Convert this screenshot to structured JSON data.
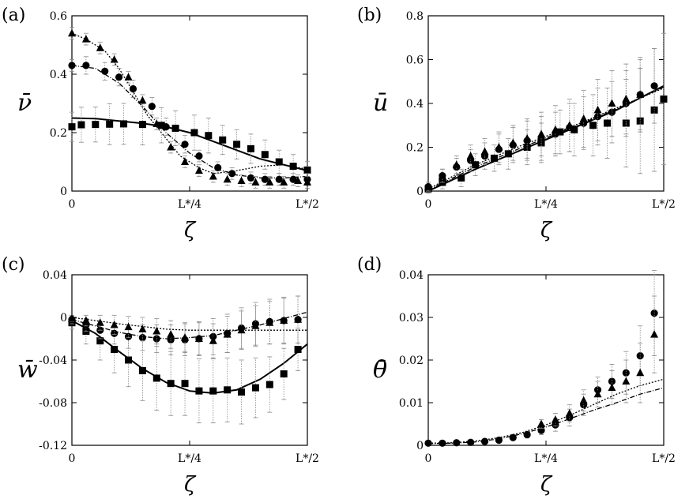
{
  "figure": {
    "x_ticks": [
      "0",
      "L*/4",
      "L*/2"
    ],
    "xlabel": "ζ"
  },
  "chart_data": [
    {
      "panel": "(a)",
      "type": "line",
      "ylabel": "ν̄",
      "xlabel": "ζ",
      "xlim": [
        0,
        0.5
      ],
      "ylim": [
        0,
        0.6
      ],
      "y_ticks": [
        0,
        0.2,
        0.4,
        0.6
      ],
      "y_tick_labels": [
        "0",
        "0.2",
        "0.4",
        "0.6"
      ],
      "curves": [
        {
          "name": "solid",
          "dash": "",
          "width": 2.0,
          "x": [
            0,
            0.05,
            0.1,
            0.15,
            0.2,
            0.25,
            0.3,
            0.35,
            0.4,
            0.45,
            0.5
          ],
          "y": [
            0.25,
            0.248,
            0.24,
            0.232,
            0.22,
            0.2,
            0.17,
            0.14,
            0.11,
            0.09,
            0.07
          ]
        },
        {
          "name": "dotted",
          "dash": "2,2",
          "width": 1.3,
          "x": [
            0,
            0.03,
            0.07,
            0.1,
            0.13,
            0.16,
            0.2,
            0.23,
            0.27,
            0.3,
            0.35,
            0.4,
            0.45,
            0.5
          ],
          "y": [
            0.54,
            0.52,
            0.48,
            0.42,
            0.34,
            0.26,
            0.18,
            0.12,
            0.08,
            0.06,
            0.07,
            0.085,
            0.09,
            0.075
          ]
        },
        {
          "name": "dashdot",
          "dash": "6,2,1,2",
          "width": 1.3,
          "x": [
            0,
            0.05,
            0.1,
            0.15,
            0.2,
            0.25,
            0.3,
            0.35,
            0.4,
            0.45,
            0.5
          ],
          "y": [
            0.43,
            0.42,
            0.37,
            0.29,
            0.2,
            0.13,
            0.08,
            0.055,
            0.045,
            0.045,
            0.05
          ]
        }
      ],
      "series": [
        {
          "name": "squares",
          "marker": "square",
          "x": [
            0,
            0.02,
            0.05,
            0.08,
            0.11,
            0.15,
            0.19,
            0.22,
            0.26,
            0.29,
            0.32,
            0.35,
            0.38,
            0.41,
            0.44,
            0.47,
            0.5
          ],
          "y": [
            0.22,
            0.227,
            0.228,
            0.229,
            0.23,
            0.228,
            0.225,
            0.215,
            0.2,
            0.19,
            0.175,
            0.16,
            0.145,
            0.125,
            0.1,
            0.085,
            0.072
          ],
          "err": [
            0.05,
            0.06,
            0.06,
            0.07,
            0.07,
            0.07,
            0.06,
            0.06,
            0.06,
            0.06,
            0.05,
            0.05,
            0.05,
            0.05,
            0.04,
            0.04,
            0.03
          ]
        },
        {
          "name": "circles",
          "marker": "circle",
          "x": [
            0,
            0.03,
            0.07,
            0.1,
            0.13,
            0.17,
            0.2,
            0.24,
            0.27,
            0.31,
            0.34,
            0.38,
            0.41,
            0.44,
            0.47,
            0.5
          ],
          "y": [
            0.43,
            0.43,
            0.41,
            0.39,
            0.35,
            0.29,
            0.22,
            0.16,
            0.12,
            0.08,
            0.06,
            0.045,
            0.04,
            0.04,
            0.04,
            0.04
          ],
          "err": [
            0.02,
            0.03,
            0.03,
            0.03,
            0.03,
            0.03,
            0.03,
            0.03,
            0.02,
            0.02,
            0.02,
            0.02,
            0.02,
            0.02,
            0.02,
            0.02
          ]
        },
        {
          "name": "triangles",
          "marker": "triangle",
          "x": [
            0,
            0.03,
            0.06,
            0.09,
            0.12,
            0.15,
            0.18,
            0.21,
            0.24,
            0.27,
            0.3,
            0.33,
            0.36,
            0.39,
            0.42,
            0.45,
            0.48,
            0.5
          ],
          "y": [
            0.54,
            0.52,
            0.49,
            0.45,
            0.39,
            0.31,
            0.23,
            0.15,
            0.1,
            0.07,
            0.05,
            0.04,
            0.035,
            0.03,
            0.03,
            0.03,
            0.035,
            0.03
          ],
          "err": [
            0.02,
            0.02,
            0.02,
            0.02,
            0.02,
            0.02,
            0.02,
            0.02,
            0.02,
            0.02,
            0.02,
            0.02,
            0.02,
            0.02,
            0.02,
            0.02,
            0.02,
            0.02
          ]
        }
      ]
    },
    {
      "panel": "(b)",
      "type": "line",
      "ylabel": "ū",
      "xlabel": "ζ",
      "xlim": [
        0,
        0.5
      ],
      "ylim": [
        0,
        0.8
      ],
      "y_ticks": [
        0,
        0.2,
        0.4,
        0.6,
        0.8
      ],
      "y_tick_labels": [
        "0",
        "0.2",
        "0.4",
        "0.6",
        "0.8"
      ],
      "curves": [
        {
          "name": "solid",
          "dash": "",
          "width": 2.0,
          "x": [
            0,
            0.1,
            0.2,
            0.3,
            0.4,
            0.5
          ],
          "y": [
            0,
            0.1,
            0.19,
            0.28,
            0.37,
            0.48
          ]
        },
        {
          "name": "dotted",
          "dash": "2,2",
          "width": 1.3,
          "x": [
            0,
            0.1,
            0.2,
            0.3,
            0.4,
            0.5
          ],
          "y": [
            0.01,
            0.12,
            0.21,
            0.29,
            0.38,
            0.47
          ]
        },
        {
          "name": "dashdot",
          "dash": "6,2,1,2",
          "width": 1.3,
          "x": [
            0,
            0.1,
            0.2,
            0.3,
            0.4,
            0.5
          ],
          "y": [
            0.005,
            0.11,
            0.2,
            0.285,
            0.375,
            0.475
          ]
        }
      ],
      "series": [
        {
          "name": "squares",
          "marker": "square",
          "x": [
            0,
            0.03,
            0.07,
            0.1,
            0.14,
            0.17,
            0.21,
            0.24,
            0.28,
            0.31,
            0.35,
            0.38,
            0.42,
            0.45,
            0.48,
            0.5
          ],
          "y": [
            0.01,
            0.04,
            0.06,
            0.12,
            0.15,
            0.17,
            0.2,
            0.22,
            0.27,
            0.28,
            0.3,
            0.31,
            0.31,
            0.32,
            0.37,
            0.42
          ],
          "err": [
            0.02,
            0.03,
            0.04,
            0.05,
            0.06,
            0.07,
            0.08,
            0.09,
            0.1,
            0.12,
            0.14,
            0.16,
            0.2,
            0.24,
            0.28,
            0.3
          ]
        },
        {
          "name": "circles",
          "marker": "circle",
          "x": [
            0,
            0.03,
            0.06,
            0.09,
            0.12,
            0.15,
            0.18,
            0.21,
            0.24,
            0.27,
            0.3,
            0.33,
            0.36,
            0.39,
            0.42,
            0.45,
            0.48
          ],
          "y": [
            0.02,
            0.07,
            0.11,
            0.14,
            0.16,
            0.19,
            0.21,
            0.23,
            0.24,
            0.26,
            0.29,
            0.31,
            0.34,
            0.36,
            0.4,
            0.44,
            0.48
          ],
          "err": [
            0.02,
            0.03,
            0.04,
            0.05,
            0.06,
            0.07,
            0.08,
            0.09,
            0.1,
            0.1,
            0.11,
            0.12,
            0.13,
            0.14,
            0.15,
            0.16,
            0.17
          ]
        },
        {
          "name": "triangles",
          "marker": "triangle",
          "x": [
            0,
            0.03,
            0.06,
            0.09,
            0.12,
            0.15,
            0.18,
            0.21,
            0.24,
            0.27,
            0.3,
            0.33,
            0.36,
            0.39,
            0.42,
            0.45
          ],
          "y": [
            0.02,
            0.07,
            0.12,
            0.16,
            0.18,
            0.2,
            0.22,
            0.24,
            0.26,
            0.28,
            0.3,
            0.33,
            0.37,
            0.4,
            0.42,
            0.44
          ],
          "err": [
            0.02,
            0.03,
            0.04,
            0.05,
            0.06,
            0.07,
            0.08,
            0.09,
            0.1,
            0.11,
            0.12,
            0.13,
            0.14,
            0.15,
            0.16,
            0.17
          ]
        }
      ]
    },
    {
      "panel": "(c)",
      "type": "line",
      "ylabel": "w̄",
      "xlabel": "ζ",
      "xlim": [
        0,
        0.5
      ],
      "ylim": [
        -0.12,
        0.04
      ],
      "y_ticks": [
        0.04,
        0,
        -0.04,
        -0.08,
        -0.12
      ],
      "y_tick_labels": [
        "0.04",
        "0",
        "-0.04",
        "-0.08",
        "-0.12"
      ],
      "curves": [
        {
          "name": "solid",
          "dash": "",
          "width": 2.0,
          "x": [
            0,
            0.05,
            0.1,
            0.15,
            0.2,
            0.25,
            0.3,
            0.35,
            0.4,
            0.45,
            0.5
          ],
          "y": [
            -0.003,
            -0.015,
            -0.032,
            -0.048,
            -0.061,
            -0.069,
            -0.071,
            -0.068,
            -0.058,
            -0.043,
            -0.025
          ]
        },
        {
          "name": "dotted",
          "dash": "2,2",
          "width": 1.3,
          "x": [
            0,
            0.1,
            0.2,
            0.25,
            0.3,
            0.35,
            0.4,
            0.45,
            0.5
          ],
          "y": [
            0,
            -0.006,
            -0.011,
            -0.012,
            -0.012,
            -0.012,
            -0.012,
            -0.012,
            -0.012
          ]
        },
        {
          "name": "dashdot",
          "dash": "6,2,1,2",
          "width": 1.3,
          "x": [
            0,
            0.05,
            0.1,
            0.15,
            0.2,
            0.25,
            0.3,
            0.35,
            0.4,
            0.45,
            0.5
          ],
          "y": [
            -0.002,
            -0.008,
            -0.014,
            -0.018,
            -0.02,
            -0.019,
            -0.017,
            -0.012,
            -0.007,
            -0.001,
            0.005
          ]
        }
      ],
      "series": [
        {
          "name": "squares",
          "marker": "square",
          "x": [
            0,
            0.03,
            0.06,
            0.09,
            0.12,
            0.15,
            0.18,
            0.21,
            0.24,
            0.27,
            0.3,
            0.33,
            0.36,
            0.39,
            0.42,
            0.45,
            0.48
          ],
          "y": [
            -0.005,
            -0.013,
            -0.022,
            -0.03,
            -0.04,
            -0.05,
            -0.057,
            -0.062,
            -0.062,
            -0.069,
            -0.069,
            -0.068,
            -0.07,
            -0.066,
            -0.063,
            -0.053,
            -0.03
          ],
          "err": [
            0.006,
            0.012,
            0.018,
            0.022,
            0.025,
            0.028,
            0.03,
            0.03,
            0.03,
            0.03,
            0.03,
            0.03,
            0.03,
            0.028,
            0.026,
            0.024,
            0.02
          ]
        },
        {
          "name": "circles",
          "marker": "circle",
          "x": [
            0,
            0.03,
            0.06,
            0.09,
            0.12,
            0.15,
            0.18,
            0.21,
            0.24,
            0.27,
            0.3,
            0.33,
            0.36,
            0.39,
            0.42,
            0.45,
            0.48
          ],
          "y": [
            -0.002,
            -0.007,
            -0.012,
            -0.015,
            -0.018,
            -0.019,
            -0.02,
            -0.021,
            -0.021,
            -0.02,
            -0.018,
            -0.015,
            -0.01,
            -0.006,
            -0.004,
            -0.003,
            -0.002
          ],
          "err": [
            0.004,
            0.006,
            0.008,
            0.01,
            0.011,
            0.012,
            0.013,
            0.014,
            0.015,
            0.016,
            0.017,
            0.018,
            0.019,
            0.02,
            0.021,
            0.022,
            0.022
          ]
        },
        {
          "name": "triangles",
          "marker": "triangle",
          "x": [
            0,
            0.03,
            0.06,
            0.09,
            0.12,
            0.15,
            0.18,
            0.21,
            0.24,
            0.27,
            0.3,
            0.33,
            0.36,
            0.39,
            0.42,
            0.45,
            0.48
          ],
          "y": [
            -0.001,
            -0.003,
            -0.005,
            -0.007,
            -0.009,
            -0.011,
            -0.013,
            -0.016,
            -0.019,
            -0.02,
            -0.022,
            -0.016,
            -0.012,
            -0.008,
            -0.005,
            -0.003,
            -0.002
          ],
          "err": [
            0.003,
            0.005,
            0.007,
            0.009,
            0.01,
            0.011,
            0.012,
            0.013,
            0.014,
            0.015,
            0.016,
            0.017,
            0.018,
            0.019,
            0.02,
            0.021,
            0.022
          ]
        }
      ]
    },
    {
      "panel": "(d)",
      "type": "line",
      "ylabel": "θ̄",
      "xlabel": "ζ",
      "xlim": [
        0,
        0.5
      ],
      "ylim": [
        0,
        0.04
      ],
      "y_ticks": [
        0,
        0.01,
        0.02,
        0.03,
        0.04
      ],
      "y_tick_labels": [
        "0",
        "0.01",
        "0.02",
        "0.03",
        "0.04"
      ],
      "curves": [
        {
          "name": "dotted",
          "dash": "2,2",
          "width": 1.3,
          "x": [
            0,
            0.05,
            0.1,
            0.15,
            0.2,
            0.25,
            0.3,
            0.35,
            0.4,
            0.45,
            0.5
          ],
          "y": [
            0.0005,
            0.0006,
            0.001,
            0.0018,
            0.003,
            0.0048,
            0.007,
            0.0095,
            0.012,
            0.014,
            0.0155
          ]
        },
        {
          "name": "dashdot",
          "dash": "6,2,1,2",
          "width": 1.3,
          "x": [
            0,
            0.05,
            0.1,
            0.15,
            0.2,
            0.25,
            0.3,
            0.35,
            0.4,
            0.45,
            0.5
          ],
          "y": [
            0.0004,
            0.0005,
            0.0008,
            0.0015,
            0.0027,
            0.0043,
            0.0062,
            0.0082,
            0.01,
            0.012,
            0.0135
          ]
        }
      ],
      "series": [
        {
          "name": "circles",
          "marker": "circle",
          "x": [
            0,
            0.03,
            0.06,
            0.09,
            0.12,
            0.15,
            0.18,
            0.21,
            0.24,
            0.27,
            0.3,
            0.33,
            0.36,
            0.39,
            0.42,
            0.45,
            0.48
          ],
          "y": [
            0.0005,
            0.0005,
            0.0006,
            0.0007,
            0.0009,
            0.0012,
            0.0018,
            0.0025,
            0.0035,
            0.0048,
            0.0065,
            0.0095,
            0.013,
            0.015,
            0.017,
            0.021,
            0.031
          ],
          "err": [
            0.0002,
            0.0002,
            0.0003,
            0.0003,
            0.0004,
            0.0005,
            0.0006,
            0.0008,
            0.001,
            0.0015,
            0.002,
            0.0025,
            0.003,
            0.004,
            0.005,
            0.007,
            0.01
          ]
        },
        {
          "name": "triangles",
          "marker": "triangle",
          "x": [
            0.24,
            0.27,
            0.3,
            0.33,
            0.36,
            0.39,
            0.42,
            0.45,
            0.48
          ],
          "y": [
            0.005,
            0.006,
            0.0075,
            0.0105,
            0.012,
            0.0135,
            0.015,
            0.017,
            0.026
          ],
          "err": [
            0.001,
            0.0015,
            0.002,
            0.0025,
            0.003,
            0.004,
            0.005,
            0.007,
            0.009
          ]
        }
      ]
    }
  ]
}
